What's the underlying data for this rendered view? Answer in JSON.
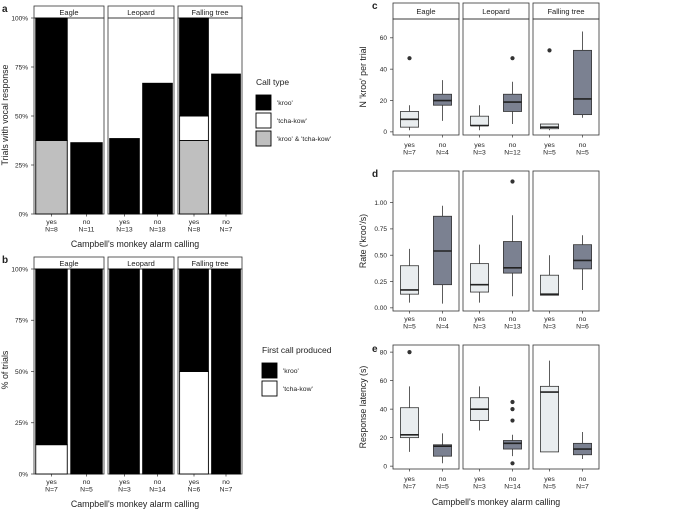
{
  "colors": {
    "kroo": "#000000",
    "tchakow": "#ffffff",
    "both": "#bfbfbf",
    "box_yes": "#e9edef",
    "box_no": "#7b8191",
    "strip_bg": "#ffffff"
  },
  "chart_data": [
    {
      "id": "a",
      "panel_letter": "a",
      "type": "bar",
      "stacked": true,
      "ylabel": "Trials with vocal response",
      "xlabel": "Campbell's monkey alarm calling",
      "ylim": [
        0,
        1
      ],
      "yticks": [
        "0%",
        "25%",
        "50%",
        "75%",
        "100%"
      ],
      "legend": {
        "title": "Call type",
        "items": [
          {
            "label": "'kroo'",
            "color": "#000000"
          },
          {
            "label": "'tcha-kow'",
            "color": "#ffffff"
          },
          {
            "label": "'kroo' & 'tcha-kow'",
            "color": "#bfbfbf"
          }
        ]
      },
      "facets": [
        {
          "title": "Eagle",
          "categories": [
            "yes\nN=8",
            "no\nN=11"
          ],
          "bars": [
            [
              {
                "value": 0.375,
                "color": "#bfbfbf"
              },
              {
                "value": 0.625,
                "color": "#000000"
              }
            ],
            [
              {
                "value": 0.364,
                "color": "#000000"
              }
            ]
          ]
        },
        {
          "title": "Leopard",
          "categories": [
            "yes\nN=13",
            "no\nN=18"
          ],
          "bars": [
            [
              {
                "value": 0.385,
                "color": "#000000"
              }
            ],
            [
              {
                "value": 0.667,
                "color": "#000000"
              }
            ]
          ]
        },
        {
          "title": "Falling tree",
          "categories": [
            "yes\nN=8",
            "no\nN=7"
          ],
          "bars": [
            [
              {
                "value": 0.375,
                "color": "#bfbfbf"
              },
              {
                "value": 0.125,
                "color": "#ffffff"
              },
              {
                "value": 0.5,
                "color": "#000000"
              }
            ],
            [
              {
                "value": 0.714,
                "color": "#000000"
              }
            ]
          ]
        }
      ]
    },
    {
      "id": "b",
      "panel_letter": "b",
      "type": "bar",
      "stacked": true,
      "ylabel": "% of trials",
      "xlabel": "Campbell's monkey alarm calling",
      "ylim": [
        0,
        1
      ],
      "yticks": [
        "0%",
        "25%",
        "50%",
        "75%",
        "100%"
      ],
      "legend": {
        "title": "First call produced",
        "items": [
          {
            "label": "'kroo'",
            "color": "#000000"
          },
          {
            "label": "'tcha-kow'",
            "color": "#ffffff"
          }
        ]
      },
      "facets": [
        {
          "title": "Eagle",
          "categories": [
            "yes\nN=7",
            "no\nN=5"
          ],
          "bars": [
            [
              {
                "value": 0.143,
                "color": "#ffffff"
              },
              {
                "value": 0.857,
                "color": "#000000"
              }
            ],
            [
              {
                "value": 1.0,
                "color": "#000000"
              }
            ]
          ]
        },
        {
          "title": "Leopard",
          "categories": [
            "yes\nN=3",
            "no\nN=14"
          ],
          "bars": [
            [
              {
                "value": 1.0,
                "color": "#000000"
              }
            ],
            [
              {
                "value": 1.0,
                "color": "#000000"
              }
            ]
          ]
        },
        {
          "title": "Falling tree",
          "categories": [
            "yes\nN=6",
            "no\nN=7"
          ],
          "bars": [
            [
              {
                "value": 0.5,
                "color": "#ffffff"
              },
              {
                "value": 0.5,
                "color": "#000000"
              }
            ],
            [
              {
                "value": 1.0,
                "color": "#000000"
              }
            ]
          ]
        }
      ]
    },
    {
      "id": "c",
      "panel_letter": "c",
      "type": "box",
      "ylabel": "N 'kroo' per trial",
      "ylim": [
        -2,
        72
      ],
      "yticks": [
        0,
        20,
        40,
        60
      ],
      "facets": [
        {
          "title": "Eagle",
          "categories": [
            "yes\nN=7",
            "no\nN=4"
          ],
          "boxes": [
            {
              "min": 1,
              "q1": 3,
              "median": 8,
              "q3": 13,
              "max": 17,
              "outliers": [
                47
              ]
            },
            {
              "min": 7,
              "q1": 17,
              "median": 20,
              "q3": 24,
              "max": 33,
              "outliers": []
            }
          ]
        },
        {
          "title": "Leopard",
          "categories": [
            "yes\nN=3",
            "no\nN=12"
          ],
          "boxes": [
            {
              "min": 1,
              "q1": 4,
              "median": 4,
              "q3": 10,
              "max": 17,
              "outliers": []
            },
            {
              "min": 5,
              "q1": 13,
              "median": 19,
              "q3": 24,
              "max": 32,
              "outliers": [
                47
              ]
            }
          ]
        },
        {
          "title": "Falling tree",
          "categories": [
            "yes\nN=5",
            "no\nN=5"
          ],
          "boxes": [
            {
              "min": 1,
              "q1": 2,
              "median": 3,
              "q3": 5,
              "max": 5,
              "outliers": [
                52
              ]
            },
            {
              "min": 9,
              "q1": 11,
              "median": 21,
              "q3": 52,
              "max": 64,
              "outliers": []
            }
          ]
        }
      ]
    },
    {
      "id": "d",
      "panel_letter": "d",
      "type": "box",
      "ylabel": "Rate ('kroo'/s)",
      "ylim": [
        -0.03,
        1.3
      ],
      "yticks": [
        "0.00",
        "0.25",
        "0.50",
        "0.75",
        "1.00"
      ],
      "facets": [
        {
          "title": "",
          "categories": [
            "yes\nN=5",
            "no\nN=4"
          ],
          "boxes": [
            {
              "min": 0.05,
              "q1": 0.13,
              "median": 0.17,
              "q3": 0.4,
              "max": 0.56,
              "outliers": []
            },
            {
              "min": 0.04,
              "q1": 0.22,
              "median": 0.54,
              "q3": 0.87,
              "max": 0.97,
              "outliers": []
            }
          ]
        },
        {
          "title": "",
          "categories": [
            "yes\nN=3",
            "no\nN=13"
          ],
          "boxes": [
            {
              "min": 0.05,
              "q1": 0.15,
              "median": 0.22,
              "q3": 0.42,
              "max": 0.6,
              "outliers": []
            },
            {
              "min": 0.11,
              "q1": 0.33,
              "median": 0.38,
              "q3": 0.63,
              "max": 0.88,
              "outliers": [
                1.2
              ]
            }
          ]
        },
        {
          "title": "",
          "categories": [
            "yes\nN=3",
            "no\nN=6"
          ],
          "boxes": [
            {
              "min": 0.12,
              "q1": 0.12,
              "median": 0.13,
              "q3": 0.31,
              "max": 0.5,
              "outliers": []
            },
            {
              "min": 0.17,
              "q1": 0.37,
              "median": 0.45,
              "q3": 0.6,
              "max": 0.69,
              "outliers": []
            }
          ]
        }
      ]
    },
    {
      "id": "e",
      "panel_letter": "e",
      "type": "box",
      "ylabel": "Response latency (s)",
      "xlabel": "Campbell's monkey alarm calling",
      "ylim": [
        -2,
        85
      ],
      "yticks": [
        0,
        20,
        40,
        60,
        80
      ],
      "facets": [
        {
          "title": "",
          "categories": [
            "yes\nN=7",
            "no\nN=5"
          ],
          "boxes": [
            {
              "min": 10,
              "q1": 20,
              "median": 22,
              "q3": 41,
              "max": 56,
              "outliers": [
                80
              ]
            },
            {
              "min": 2,
              "q1": 7,
              "median": 14,
              "q3": 15,
              "max": 23,
              "outliers": []
            }
          ]
        },
        {
          "title": "",
          "categories": [
            "yes\nN=3",
            "no\nN=14"
          ],
          "boxes": [
            {
              "min": 25,
              "q1": 32,
              "median": 40,
              "q3": 48,
              "max": 56,
              "outliers": []
            },
            {
              "min": 7,
              "q1": 12,
              "median": 16,
              "q3": 18,
              "max": 22,
              "outliers": [
                2,
                32,
                40,
                45
              ]
            }
          ]
        },
        {
          "title": "",
          "categories": [
            "yes\nN=5",
            "no\nN=7"
          ],
          "boxes": [
            {
              "min": 10,
              "q1": 10,
              "median": 52,
              "q3": 56,
              "max": 74,
              "outliers": []
            },
            {
              "min": 5,
              "q1": 8,
              "median": 12,
              "q3": 16,
              "max": 24,
              "outliers": []
            }
          ]
        }
      ]
    }
  ]
}
